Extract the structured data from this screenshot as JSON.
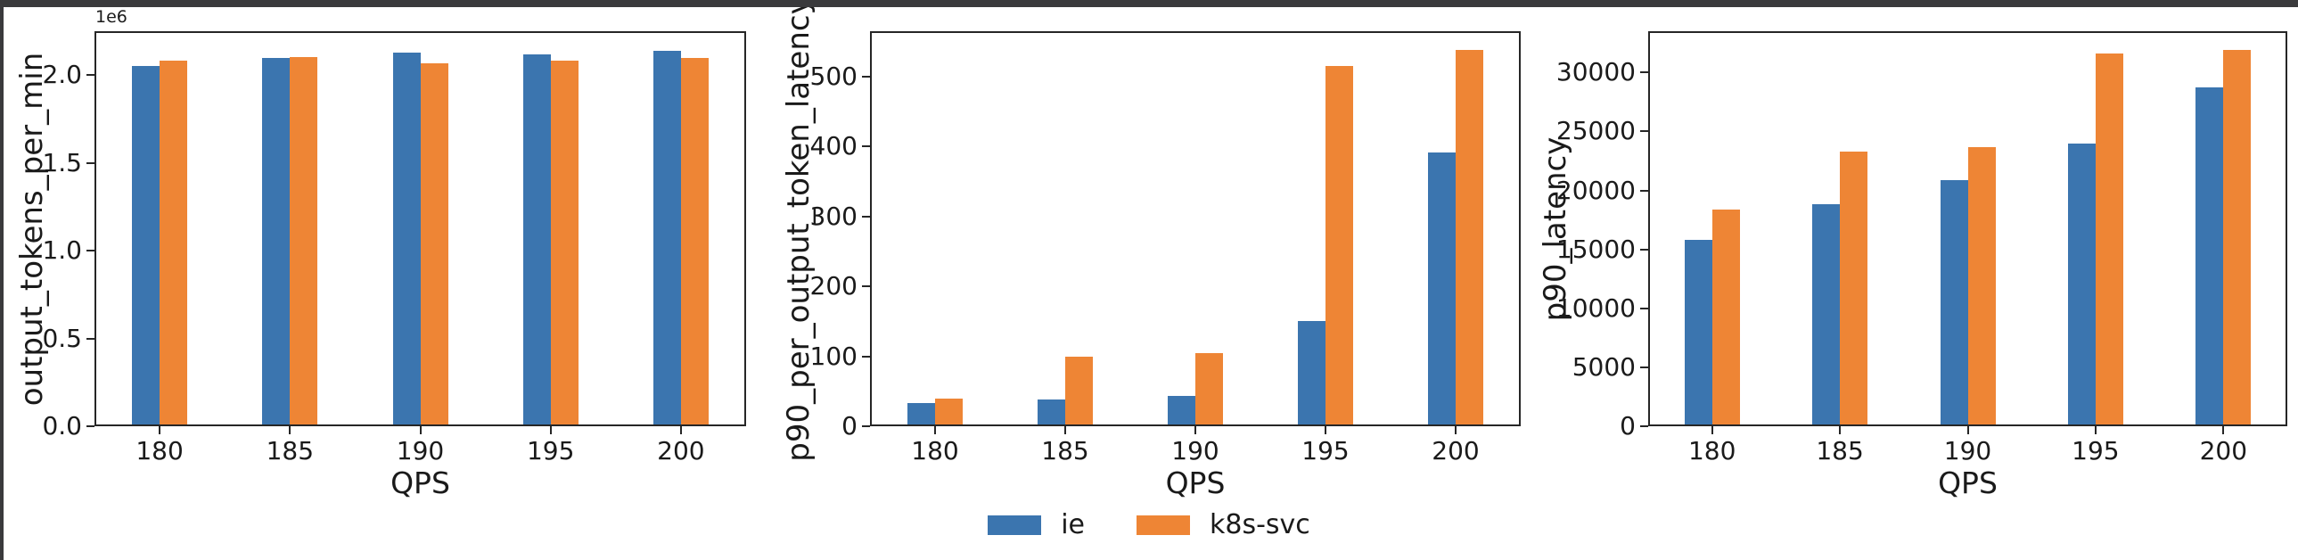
{
  "figure": {
    "background": "#ffffff",
    "frame_color": "#3a3a3c",
    "spine_color": "#262626",
    "text_color": "#1a1a1a"
  },
  "colors": {
    "ie": "#3b75af",
    "k8s_svc": "#ee8535"
  },
  "legend": {
    "position": "bottom-center",
    "items": [
      {
        "label": "ie",
        "color": "#3b75af"
      },
      {
        "label": "k8s-svc",
        "color": "#ee8535"
      }
    ]
  },
  "chart_data": [
    {
      "type": "bar",
      "title": "",
      "ylabel": "output_tokens_per_min",
      "xlabel": "QPS",
      "offset_text": "1e6",
      "categories": [
        "180",
        "185",
        "190",
        "195",
        "200"
      ],
      "series": [
        {
          "name": "ie",
          "values": [
            2050000,
            2100000,
            2130000,
            2120000,
            2140000
          ]
        },
        {
          "name": "k8s-svc",
          "values": [
            2080000,
            2105000,
            2065000,
            2080000,
            2100000
          ]
        }
      ],
      "ylim": [
        0,
        2250000
      ],
      "yticks": [
        0,
        500000,
        1000000,
        1500000,
        2000000
      ],
      "ytick_labels": [
        "0.0",
        "0.5",
        "1.0",
        "1.5",
        "2.0"
      ],
      "grid": false,
      "legend_position": "shared-bottom"
    },
    {
      "type": "bar",
      "title": "",
      "ylabel": "p90_per_output_token_latency",
      "xlabel": "QPS",
      "offset_text": "",
      "categories": [
        "180",
        "185",
        "190",
        "195",
        "200"
      ],
      "series": [
        {
          "name": "ie",
          "values": [
            33,
            38,
            44,
            150,
            392
          ]
        },
        {
          "name": "k8s-svc",
          "values": [
            40,
            100,
            104,
            515,
            538
          ]
        }
      ],
      "ylim": [
        0,
        565
      ],
      "yticks": [
        0,
        100,
        200,
        300,
        400,
        500
      ],
      "ytick_labels": [
        "0",
        "100",
        "200",
        "300",
        "400",
        "500"
      ],
      "grid": false,
      "legend_position": "shared-bottom"
    },
    {
      "type": "bar",
      "title": "",
      "ylabel": "p90_latency",
      "xlabel": "QPS",
      "offset_text": "",
      "categories": [
        "180",
        "185",
        "190",
        "195",
        "200"
      ],
      "series": [
        {
          "name": "ie",
          "values": [
            15800,
            18800,
            20900,
            24000,
            28700
          ]
        },
        {
          "name": "k8s-svc",
          "values": [
            18400,
            23300,
            23700,
            31600,
            31900
          ]
        }
      ],
      "ylim": [
        0,
        33500
      ],
      "yticks": [
        0,
        5000,
        10000,
        15000,
        20000,
        25000,
        30000
      ],
      "ytick_labels": [
        "0",
        "5000",
        "10000",
        "15000",
        "20000",
        "25000",
        "30000"
      ],
      "grid": false,
      "legend_position": "shared-bottom"
    }
  ]
}
